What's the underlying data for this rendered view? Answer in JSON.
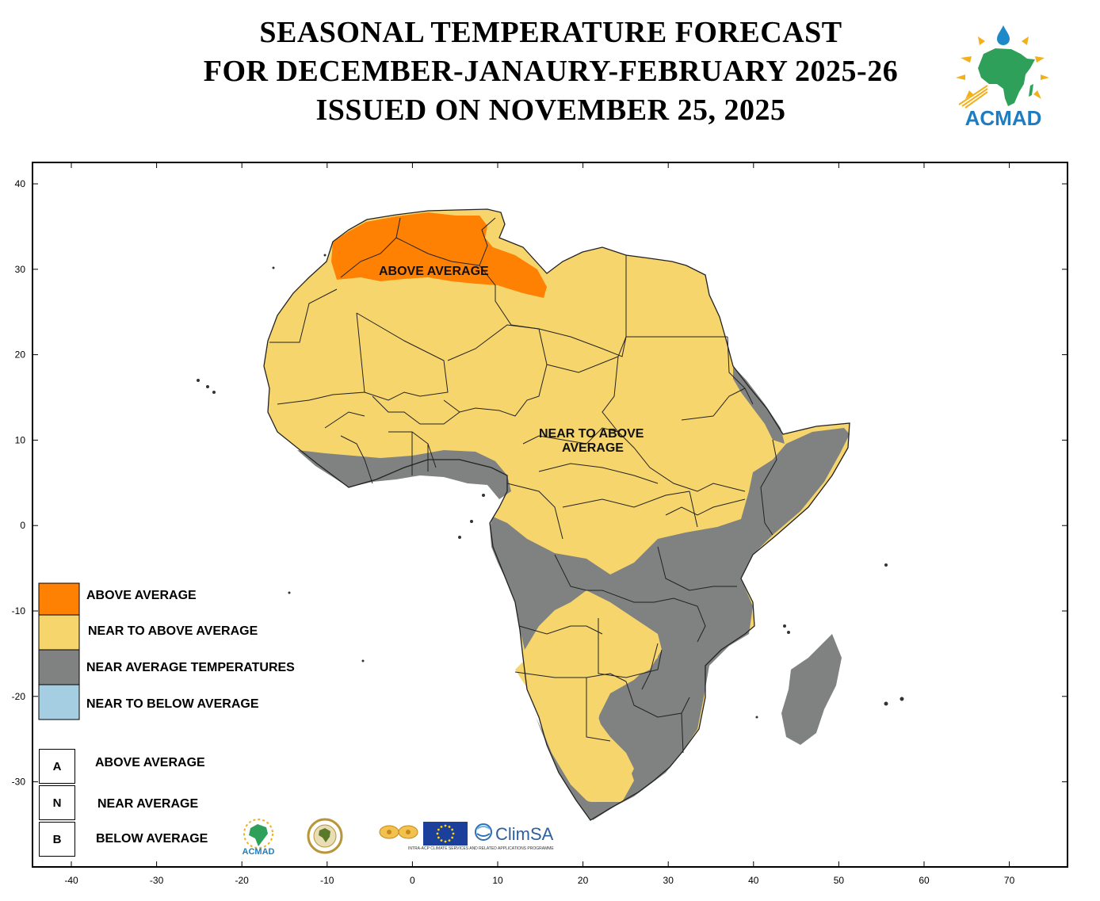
{
  "title": {
    "line1": "SEASONAL TEMPERATURE FORECAST",
    "line2": "FOR DECEMBER-JANAURY-FEBRUARY  2025-26",
    "line3": "ISSUED ON NOVEMBER 25, 2025"
  },
  "logo": {
    "text": "ACMAD"
  },
  "colors": {
    "above": "#FF8103",
    "near_above": "#F6D56D",
    "near": "#7F8281",
    "near_below": "#A6CEE3",
    "border": "#222222"
  },
  "map": {
    "x_ticks": [
      "-40",
      "-30",
      "-20",
      "-10",
      "0",
      "10",
      "20",
      "30",
      "40",
      "50",
      "60",
      "70"
    ],
    "y_ticks": [
      "40",
      "30",
      "20",
      "10",
      "0",
      "-10",
      "-20",
      "-30"
    ],
    "region_labels": {
      "above": "ABOVE AVERAGE",
      "near_above_1": "NEAR TO  ABOVE",
      "near_above_2": "AVERAGE"
    }
  },
  "legend": {
    "categories": [
      {
        "label": "ABOVE AVERAGE",
        "color": "#FF8103"
      },
      {
        "label": "NEAR TO ABOVE AVERAGE",
        "color": "#F6D56D"
      },
      {
        "label": "NEAR AVERAGE TEMPERATURES",
        "color": "#7F8281"
      },
      {
        "label": "NEAR TO BELOW  AVERAGE",
        "color": "#A6CEE3"
      }
    ],
    "letters": [
      {
        "letter": "A",
        "label": "ABOVE AVERAGE"
      },
      {
        "letter": "N",
        "label": "NEAR AVERAGE"
      },
      {
        "letter": "B",
        "label": "BELOW AVERAGE"
      }
    ]
  },
  "partners": {
    "acmad": "ACMAD",
    "climsa": "ClimSA",
    "climsa_sub": "INTRA-ACP CLIMATE SERVICES AND RELATED APPLICATIONS PROGRAMME"
  }
}
